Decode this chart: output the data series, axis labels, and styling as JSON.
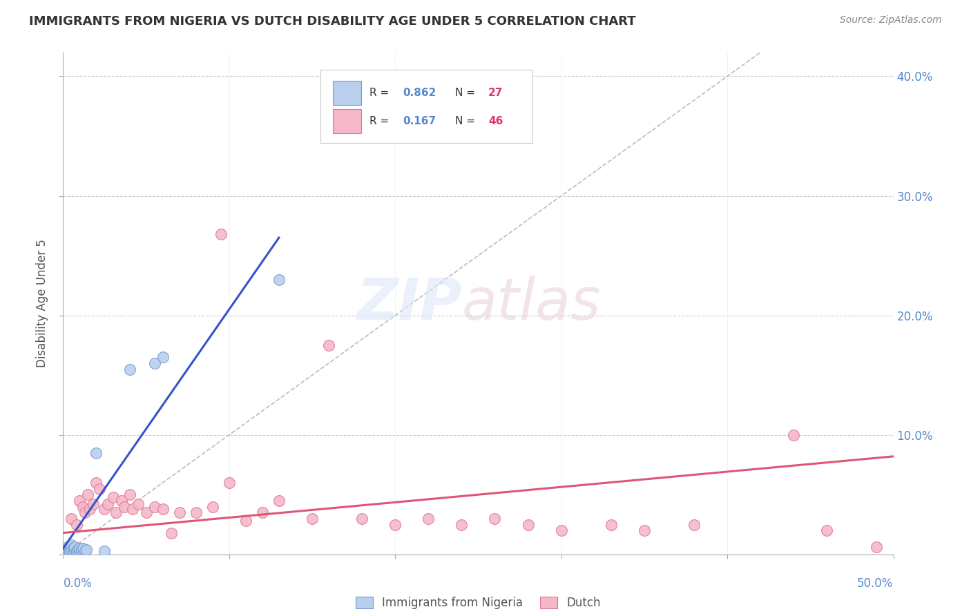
{
  "title": "IMMIGRANTS FROM NIGERIA VS DUTCH DISABILITY AGE UNDER 5 CORRELATION CHART",
  "source": "Source: ZipAtlas.com",
  "ylabel": "Disability Age Under 5",
  "xlim": [
    0.0,
    0.5
  ],
  "ylim": [
    0.0,
    0.42
  ],
  "grid_color": "#cccccc",
  "background_color": "#ffffff",
  "nigeria_color": "#b8d0ee",
  "nigeria_edge_color": "#7799cc",
  "dutch_color": "#f5b8c8",
  "dutch_edge_color": "#dd7799",
  "nigeria_line_color": "#3355cc",
  "dutch_line_color": "#e05575",
  "ref_line_color": "#bbbbbb",
  "legend_R_color": "#5588cc",
  "legend_N_color": "#dd3366",
  "nigeria_scatter_x": [
    0.001,
    0.002,
    0.002,
    0.003,
    0.003,
    0.004,
    0.004,
    0.005,
    0.005,
    0.006,
    0.006,
    0.007,
    0.007,
    0.008,
    0.009,
    0.01,
    0.01,
    0.011,
    0.012,
    0.013,
    0.014,
    0.02,
    0.025,
    0.04,
    0.055,
    0.06,
    0.13
  ],
  "nigeria_scatter_y": [
    0.002,
    0.003,
    0.005,
    0.004,
    0.007,
    0.003,
    0.006,
    0.004,
    0.008,
    0.003,
    0.005,
    0.004,
    0.006,
    0.003,
    0.004,
    0.003,
    0.005,
    0.004,
    0.005,
    0.003,
    0.004,
    0.085,
    0.003,
    0.155,
    0.16,
    0.165,
    0.23
  ],
  "dutch_scatter_x": [
    0.005,
    0.008,
    0.01,
    0.012,
    0.013,
    0.015,
    0.016,
    0.018,
    0.02,
    0.022,
    0.025,
    0.027,
    0.03,
    0.032,
    0.035,
    0.037,
    0.04,
    0.042,
    0.045,
    0.05,
    0.055,
    0.06,
    0.065,
    0.07,
    0.08,
    0.09,
    0.095,
    0.1,
    0.11,
    0.12,
    0.13,
    0.15,
    0.16,
    0.18,
    0.2,
    0.22,
    0.24,
    0.26,
    0.28,
    0.3,
    0.33,
    0.35,
    0.38,
    0.44,
    0.46,
    0.49
  ],
  "dutch_scatter_y": [
    0.03,
    0.025,
    0.045,
    0.04,
    0.035,
    0.05,
    0.038,
    0.042,
    0.06,
    0.055,
    0.038,
    0.042,
    0.048,
    0.035,
    0.045,
    0.04,
    0.05,
    0.038,
    0.042,
    0.035,
    0.04,
    0.038,
    0.018,
    0.035,
    0.035,
    0.04,
    0.268,
    0.06,
    0.028,
    0.035,
    0.045,
    0.03,
    0.175,
    0.03,
    0.025,
    0.03,
    0.025,
    0.03,
    0.025,
    0.02,
    0.025,
    0.02,
    0.025,
    0.1,
    0.02,
    0.006
  ],
  "nigeria_line_x": [
    0.0,
    0.13
  ],
  "nigeria_line_y": [
    0.005,
    0.265
  ],
  "dutch_line_x": [
    0.0,
    0.5
  ],
  "dutch_line_y": [
    0.018,
    0.082
  ],
  "ref_line_x": [
    0.0,
    0.42
  ],
  "ref_line_y": [
    0.0,
    0.42
  ]
}
